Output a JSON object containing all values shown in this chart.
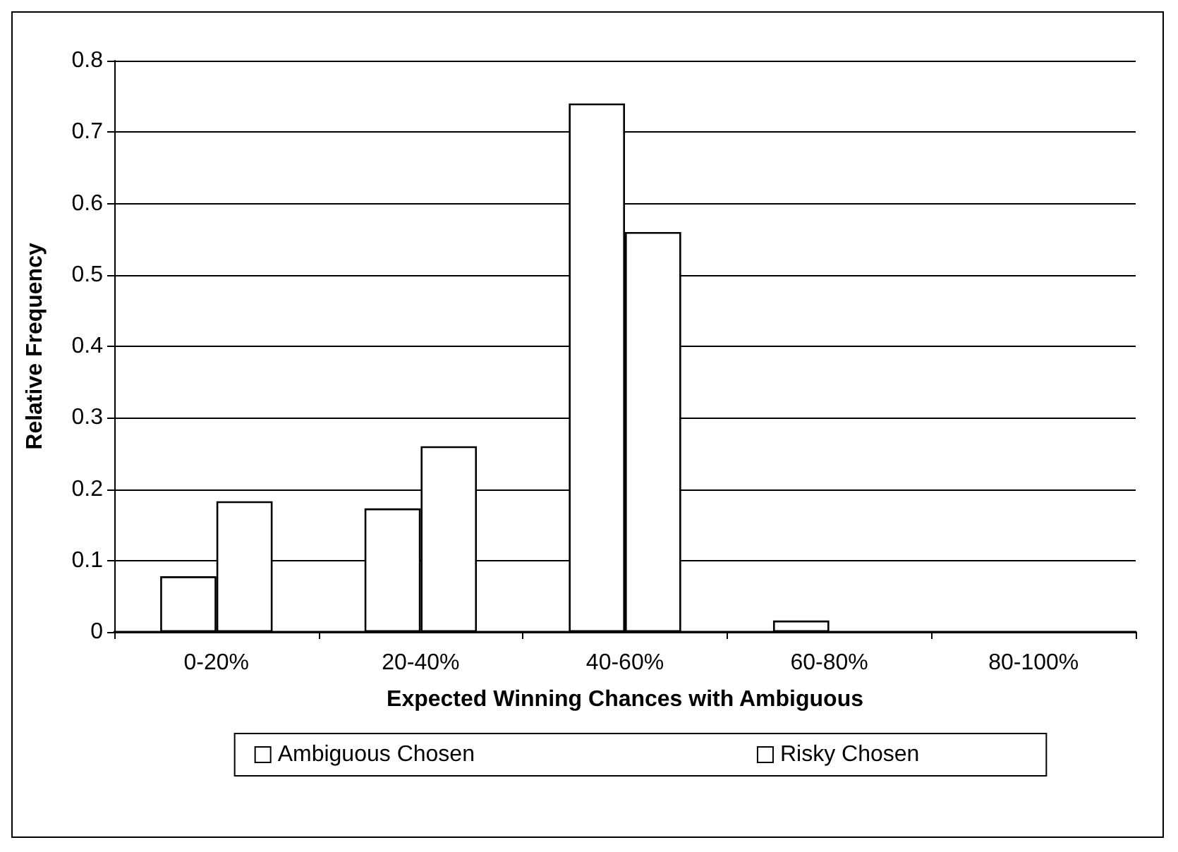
{
  "chart_data": {
    "type": "bar",
    "xlabel": "Expected Winning Chances with Ambiguous",
    "ylabel": "Relative Frequency",
    "categories": [
      "0-20%",
      "20-40%",
      "40-60%",
      "60-80%",
      "80-100%"
    ],
    "series": [
      {
        "name": "Ambiguous Chosen",
        "color": "#ffffff",
        "values": [
          0.078,
          0.173,
          0.74,
          0.016,
          0
        ]
      },
      {
        "name": "Risky Chosen",
        "color": "#ffffff",
        "values": [
          0.183,
          0.26,
          0.56,
          0,
          0
        ]
      }
    ],
    "ylim": [
      0,
      0.8
    ],
    "yticks": [
      0,
      0.1,
      0.2,
      0.3,
      0.4,
      0.5,
      0.6,
      0.7,
      0.8
    ],
    "grid": "y",
    "legend": "bottom"
  }
}
